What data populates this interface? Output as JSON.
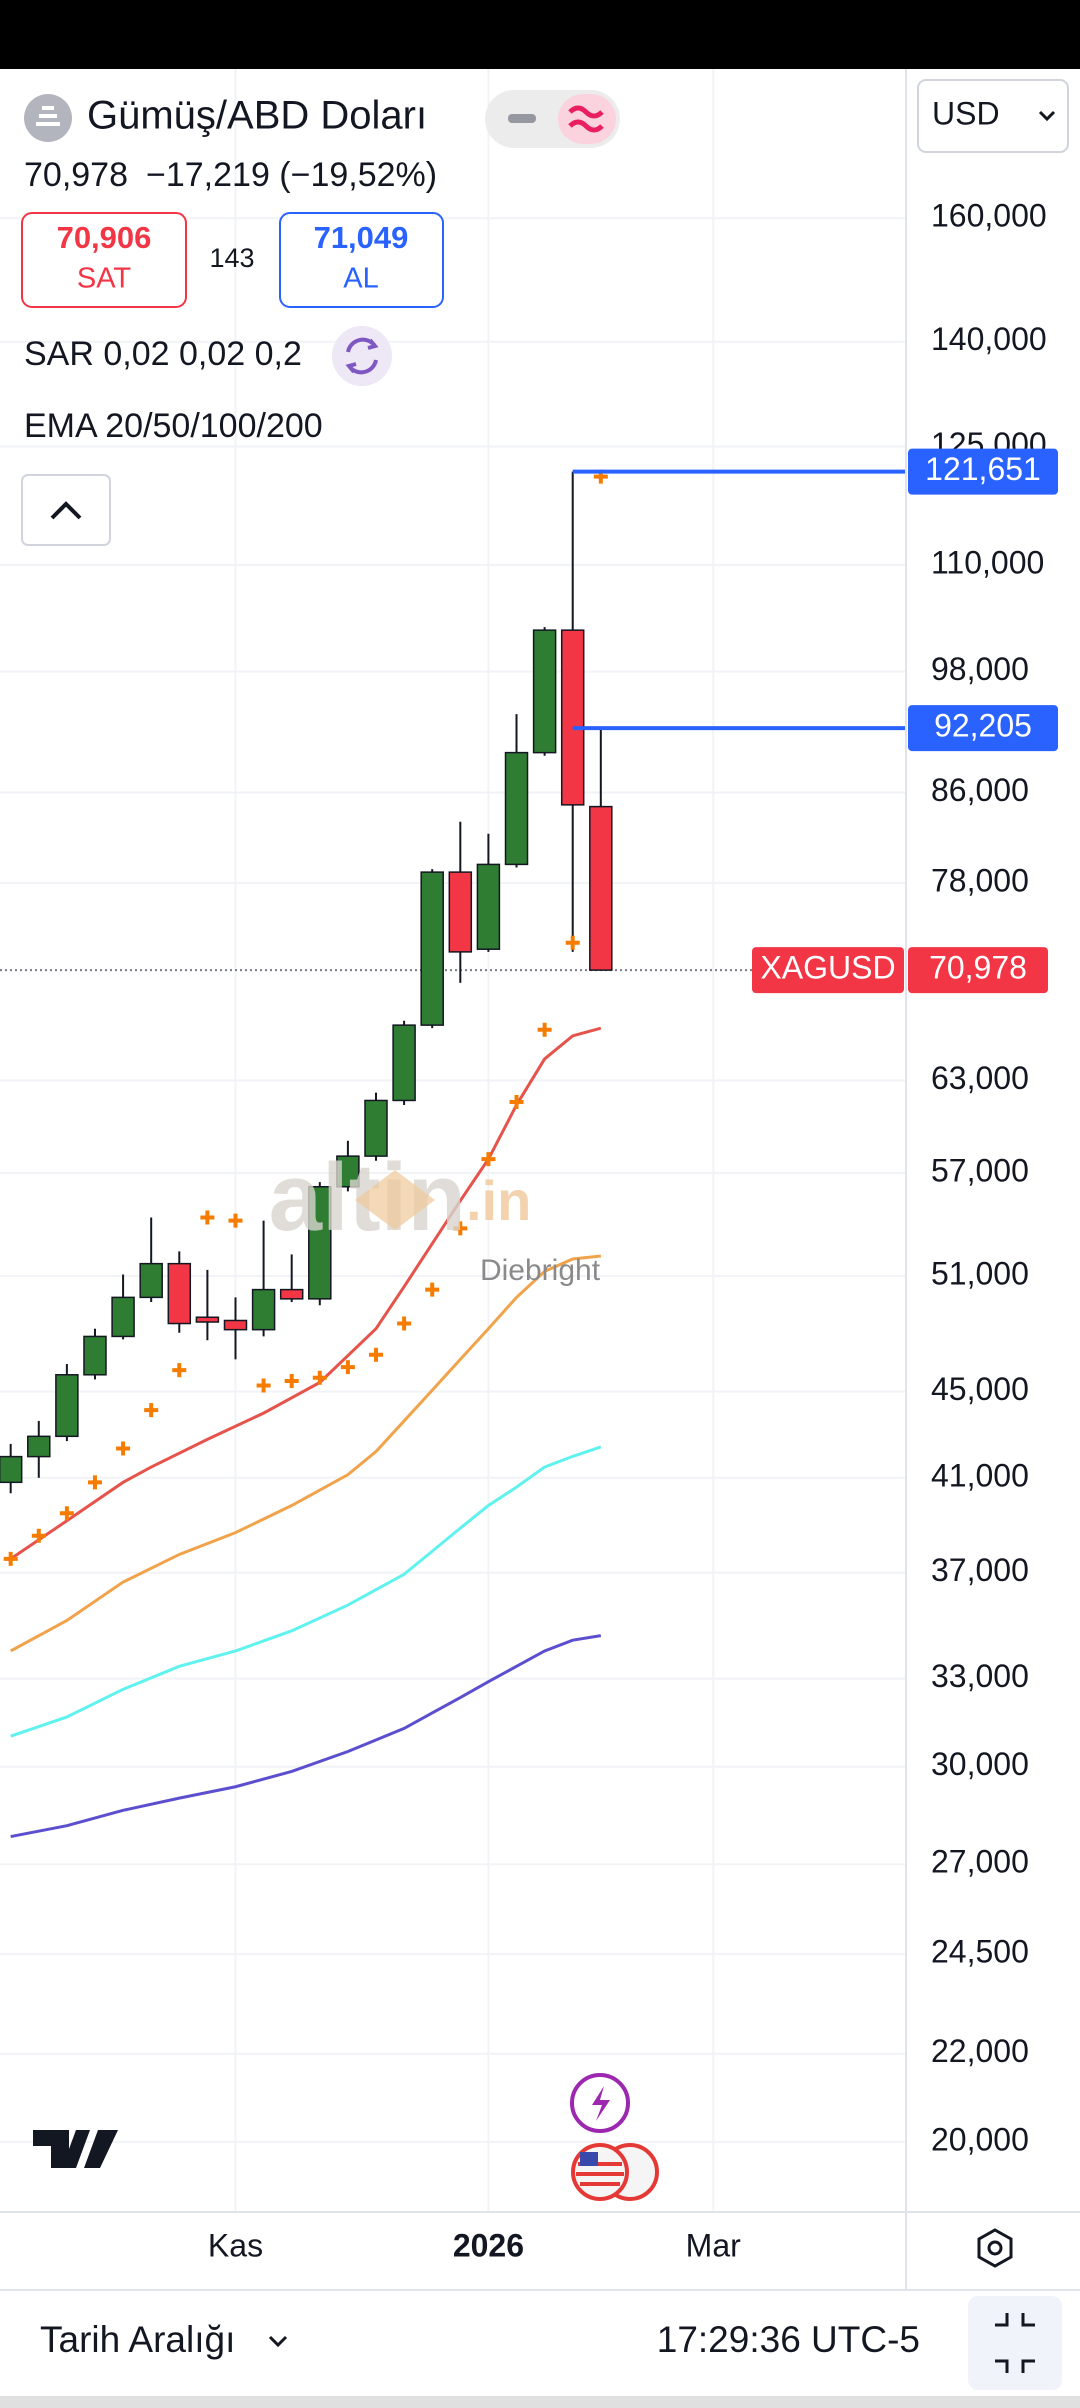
{
  "header": {
    "symbol": "Gümüş/ABD Doları",
    "price": "70,978",
    "change": "−17,219 (−19,52%)",
    "sell": {
      "price": "70,906",
      "label": "SAT"
    },
    "spread": "143",
    "buy": {
      "price": "71,049",
      "label": "AL"
    },
    "indicators": [
      "SAR 0,02 0,02 0,2",
      "EMA 20/50/100/200"
    ],
    "currency": "USD"
  },
  "watermark": {
    "brand": "altin",
    "suffix": ".in",
    "author": "Diebright"
  },
  "footer": {
    "range": "Tarih Aralığı",
    "time": "17:29:36 UTC-5"
  },
  "chart_data": {
    "type": "candlestick",
    "x": [
      0,
      1,
      2,
      3,
      4,
      5,
      6,
      7,
      8,
      9,
      10,
      11,
      12,
      13,
      14,
      15,
      16,
      17,
      18,
      19,
      20,
      21
    ],
    "open": [
      40800,
      41950,
      42880,
      45830,
      47770,
      49830,
      51680,
      48770,
      48600,
      48120,
      50250,
      49750,
      56160,
      58050,
      61650,
      66880,
      78910,
      72600,
      79570,
      89790,
      102500,
      84700
    ],
    "high": [
      42530,
      43600,
      46370,
      48170,
      51080,
      54320,
      52370,
      51330,
      49830,
      54140,
      52200,
      56440,
      59020,
      62170,
      67200,
      79170,
      83330,
      82250,
      93600,
      102840,
      121651,
      92205
    ],
    "low": [
      40320,
      41000,
      42660,
      45600,
      47620,
      49580,
      47960,
      47570,
      46600,
      47770,
      49580,
      49410,
      55880,
      57760,
      61350,
      66660,
      70010,
      72390,
      79300,
      89490,
      72390,
      70978
    ],
    "close": [
      41950,
      42880,
      45830,
      47770,
      49830,
      51680,
      48440,
      48520,
      48120,
      50250,
      49750,
      56160,
      58050,
      61650,
      66880,
      78910,
      72390,
      79570,
      89790,
      102500,
      84860,
      70978
    ],
    "up_color": "#2e7d32",
    "down_color": "#f23645",
    "lines": [
      {
        "color": "#e5534b",
        "x": [
          0,
          2,
          4,
          5,
          7,
          9,
          11,
          13,
          14,
          15,
          16,
          17,
          18,
          19,
          20,
          21
        ],
        "values": [
          37560,
          39140,
          40800,
          41480,
          42740,
          43970,
          45450,
          48170,
          50410,
          52810,
          55320,
          57860,
          61350,
          64480,
          66110,
          66660
        ]
      },
      {
        "color": "#f0a34a",
        "x": [
          0,
          2,
          4,
          6,
          8,
          10,
          12,
          13,
          14,
          15,
          16,
          17,
          18,
          19,
          20,
          21
        ],
        "values": [
          34000,
          35140,
          36630,
          37740,
          38640,
          39790,
          41140,
          42180,
          43600,
          45070,
          46600,
          48170,
          49830,
          51250,
          51940,
          52110
        ]
      },
      {
        "color": "#5ff2ee",
        "x": [
          0,
          2,
          4,
          6,
          8,
          10,
          12,
          14,
          15,
          16,
          17,
          18,
          19,
          20,
          21
        ],
        "values": [
          31010,
          31660,
          32620,
          33440,
          34000,
          34750,
          35730,
          36940,
          37870,
          38830,
          39790,
          40590,
          41480,
          41960,
          42390
        ]
      },
      {
        "color": "#5b4fcf",
        "x": [
          0,
          2,
          4,
          6,
          8,
          10,
          12,
          14,
          15,
          16,
          17,
          18,
          19,
          20,
          21
        ],
        "values": [
          27820,
          28150,
          28620,
          29000,
          29360,
          29850,
          30500,
          31270,
          31800,
          32330,
          32890,
          33440,
          34000,
          34400,
          34570
        ]
      }
    ],
    "sar": {
      "color": "#f57c00",
      "values": [
        37560,
        38510,
        39460,
        40800,
        42320,
        44110,
        46060,
        54320,
        54140,
        45300,
        45520,
        45680,
        46210,
        46830,
        48440,
        50250,
        53690,
        57860,
        61550,
        66550,
        73110,
        121000
      ]
    },
    "price_lines": [
      {
        "value": 121651,
        "label": "121,651",
        "color": "#2962ff"
      },
      {
        "value": 92205,
        "label": "92,205",
        "color": "#2962ff"
      }
    ],
    "last_price": {
      "value": 70978,
      "label": "70,978",
      "tag": "XAGUSD",
      "color": "#f23645"
    },
    "log_scale": true,
    "grid": true,
    "ylim": [
      18540,
      188000
    ],
    "yticks": [
      {
        "value": 20000,
        "label": "20,000"
      },
      {
        "value": 22000,
        "label": "22,000"
      },
      {
        "value": 24500,
        "label": "24,500"
      },
      {
        "value": 27000,
        "label": "27,000"
      },
      {
        "value": 30000,
        "label": "30,000"
      },
      {
        "value": 33000,
        "label": "33,000"
      },
      {
        "value": 37000,
        "label": "37,000"
      },
      {
        "value": 41000,
        "label": "41,000"
      },
      {
        "value": 45000,
        "label": "45,000"
      },
      {
        "value": 51000,
        "label": "51,000"
      },
      {
        "value": 57000,
        "label": "57,000"
      },
      {
        "value": 63000,
        "label": "63,000"
      },
      {
        "value": 78000,
        "label": "78,000"
      },
      {
        "value": 86000,
        "label": "86,000"
      },
      {
        "value": 98000,
        "label": "98,000"
      },
      {
        "value": 110000,
        "label": "110,000"
      },
      {
        "value": 125000,
        "label": "125,000"
      },
      {
        "value": 140000,
        "label": "140,000"
      },
      {
        "value": 160000,
        "label": "160,000"
      }
    ],
    "xlim": [
      -0.38,
      31.86
    ],
    "xticks": [
      {
        "value": 8,
        "label": "Kas"
      },
      {
        "value": 17,
        "label": "2026"
      },
      {
        "value": 25,
        "label": "Mar"
      }
    ]
  }
}
